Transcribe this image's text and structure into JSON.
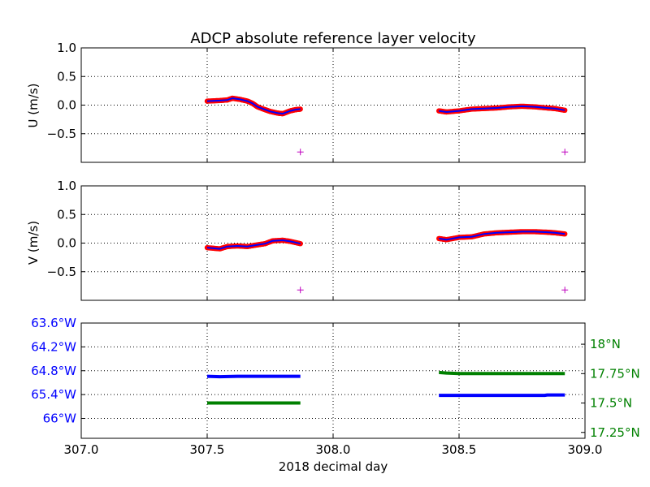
{
  "figure": {
    "title": "ADCP absolute reference layer velocity"
  },
  "chart_data": [
    {
      "type": "scatter",
      "panel": "u",
      "ylabel": "U (m/s)",
      "xlim": [
        307.0,
        309.0
      ],
      "ylim": [
        -1.0,
        1.0
      ],
      "yticks": [
        1.0,
        0.5,
        0.0,
        -0.5
      ],
      "ytick_labels": [
        "1.0",
        "0.5",
        "0.0",
        "−0.5"
      ],
      "grid": true,
      "series": [
        {
          "color": "#ff0000",
          "line_color": "#0000ff",
          "segments": [
            {
              "x": [
                307.5,
                307.55,
                307.58,
                307.6,
                307.63,
                307.66,
                307.68,
                307.7,
                307.73,
                307.75,
                307.78,
                307.8,
                307.83,
                307.85,
                307.87
              ],
              "y": [
                0.07,
                0.08,
                0.09,
                0.12,
                0.1,
                0.07,
                0.03,
                -0.03,
                -0.08,
                -0.11,
                -0.14,
                -0.15,
                -0.1,
                -0.08,
                -0.07
              ]
            },
            {
              "x": [
                308.42,
                308.45,
                308.5,
                308.55,
                308.6,
                308.65,
                308.7,
                308.75,
                308.8,
                308.85,
                308.88,
                308.92
              ],
              "y": [
                -0.1,
                -0.12,
                -0.1,
                -0.07,
                -0.06,
                -0.05,
                -0.03,
                -0.02,
                -0.03,
                -0.05,
                -0.06,
                -0.09
              ]
            }
          ]
        }
      ],
      "markers": [
        {
          "x": 307.87,
          "y": -0.82,
          "symbol": "+",
          "color": "#bf00bf"
        },
        {
          "x": 308.92,
          "y": -0.82,
          "symbol": "+",
          "color": "#bf00bf"
        }
      ]
    },
    {
      "type": "scatter",
      "panel": "v",
      "ylabel": "V (m/s)",
      "xlim": [
        307.0,
        309.0
      ],
      "ylim": [
        -1.0,
        1.0
      ],
      "yticks": [
        1.0,
        0.5,
        0.0,
        -0.5
      ],
      "ytick_labels": [
        "1.0",
        "0.5",
        "0.0",
        "−0.5"
      ],
      "grid": true,
      "series": [
        {
          "color": "#ff0000",
          "line_color": "#0000ff",
          "segments": [
            {
              "x": [
                307.5,
                307.55,
                307.58,
                307.62,
                307.66,
                307.7,
                307.73,
                307.76,
                307.8,
                307.83,
                307.87
              ],
              "y": [
                -0.08,
                -0.1,
                -0.06,
                -0.05,
                -0.06,
                -0.03,
                -0.01,
                0.04,
                0.05,
                0.03,
                -0.01
              ]
            },
            {
              "x": [
                308.42,
                308.45,
                308.5,
                308.55,
                308.6,
                308.65,
                308.7,
                308.75,
                308.8,
                308.85,
                308.88,
                308.92
              ],
              "y": [
                0.08,
                0.06,
                0.1,
                0.11,
                0.16,
                0.18,
                0.19,
                0.2,
                0.2,
                0.19,
                0.18,
                0.16
              ]
            }
          ]
        }
      ],
      "markers": [
        {
          "x": 307.87,
          "y": -0.82,
          "symbol": "+",
          "color": "#bf00bf"
        },
        {
          "x": 308.92,
          "y": -0.82,
          "symbol": "+",
          "color": "#bf00bf"
        }
      ]
    },
    {
      "type": "line",
      "panel": "position",
      "xlabel": "2018 decimal day",
      "xlim": [
        307.0,
        309.0
      ],
      "xticks": [
        307.0,
        307.5,
        308.0,
        308.5,
        309.0
      ],
      "xtick_labels": [
        "307.0",
        "307.5",
        "308.0",
        "308.5",
        "309.0"
      ],
      "grid": true,
      "left_axis": {
        "color": "#0000ff",
        "ylim": [
          -66.5,
          -63.6
        ],
        "ticks": [
          -63.6,
          -64.2,
          -64.8,
          -65.4,
          -66.0
        ],
        "tick_labels": [
          "63.6°W",
          "64.2°W",
          "64.8°W",
          "65.4°W",
          "66°W"
        ]
      },
      "right_axis": {
        "color": "#008000",
        "ylim": [
          17.2,
          18.18
        ],
        "ticks": [
          18.0,
          17.75,
          17.5,
          17.25
        ],
        "tick_labels": [
          "18°N",
          "17.75°N",
          "17.5°N",
          "17.25°N"
        ]
      },
      "series": [
        {
          "axis": "left",
          "color": "#0000ff",
          "segments": [
            {
              "x": [
                307.5,
                307.55,
                307.62,
                307.87
              ],
              "y": [
                -64.94,
                -64.95,
                -64.94,
                -64.94
              ]
            },
            {
              "x": [
                308.42,
                308.84,
                308.85,
                308.92
              ],
              "y": [
                -65.42,
                -65.42,
                -65.41,
                -65.41
              ]
            }
          ]
        },
        {
          "axis": "right",
          "color": "#008000",
          "segments": [
            {
              "x": [
                307.5,
                307.87
              ],
              "y": [
                17.5,
                17.5
              ]
            },
            {
              "x": [
                308.42,
                308.45,
                308.5,
                308.92
              ],
              "y": [
                17.76,
                17.755,
                17.75,
                17.75
              ]
            }
          ]
        }
      ]
    }
  ]
}
